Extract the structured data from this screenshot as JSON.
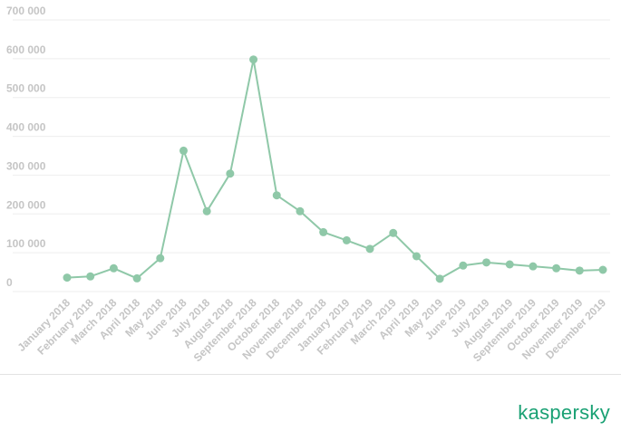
{
  "brand": {
    "logo_text": "kaspersky",
    "color": "#1aa174"
  },
  "colors": {
    "series_line": "#8fc8a8",
    "axis_text": "#c5c5c5",
    "gridline": "#eeeeee"
  },
  "chart_data": {
    "type": "line",
    "title": "",
    "xlabel": "",
    "ylabel": "",
    "grid": true,
    "legend": "none",
    "ylim": [
      0,
      700000
    ],
    "y_ticks": [
      {
        "value": 0,
        "label": "0"
      },
      {
        "value": 100000,
        "label": "100 000"
      },
      {
        "value": 200000,
        "label": "200 000"
      },
      {
        "value": 300000,
        "label": "300 000"
      },
      {
        "value": 400000,
        "label": "400 000"
      },
      {
        "value": 500000,
        "label": "500 000"
      },
      {
        "value": 600000,
        "label": "600 000"
      },
      {
        "value": 700000,
        "label": "700 000"
      }
    ],
    "categories": [
      "January 2018",
      "February 2018",
      "March 2018",
      "April 2018",
      "May 2018",
      "June 2018",
      "July 2018",
      "August 2018",
      "September 2018",
      "October 2018",
      "November 2018",
      "December 2018",
      "January 2019",
      "February 2019",
      "March 2019",
      "April 2019",
      "May 2019",
      "June 2019",
      "July 2019",
      "August 2019",
      "September 2019",
      "October 2019",
      "November 2019",
      "December 2019"
    ],
    "series": [
      {
        "values": [
          36000,
          39000,
          60000,
          34000,
          86000,
          363000,
          207000,
          304000,
          598000,
          248000,
          207000,
          153000,
          132000,
          110000,
          151000,
          91000,
          33000,
          67000,
          75000,
          70000,
          65000,
          60000,
          54000,
          56000
        ]
      }
    ]
  }
}
